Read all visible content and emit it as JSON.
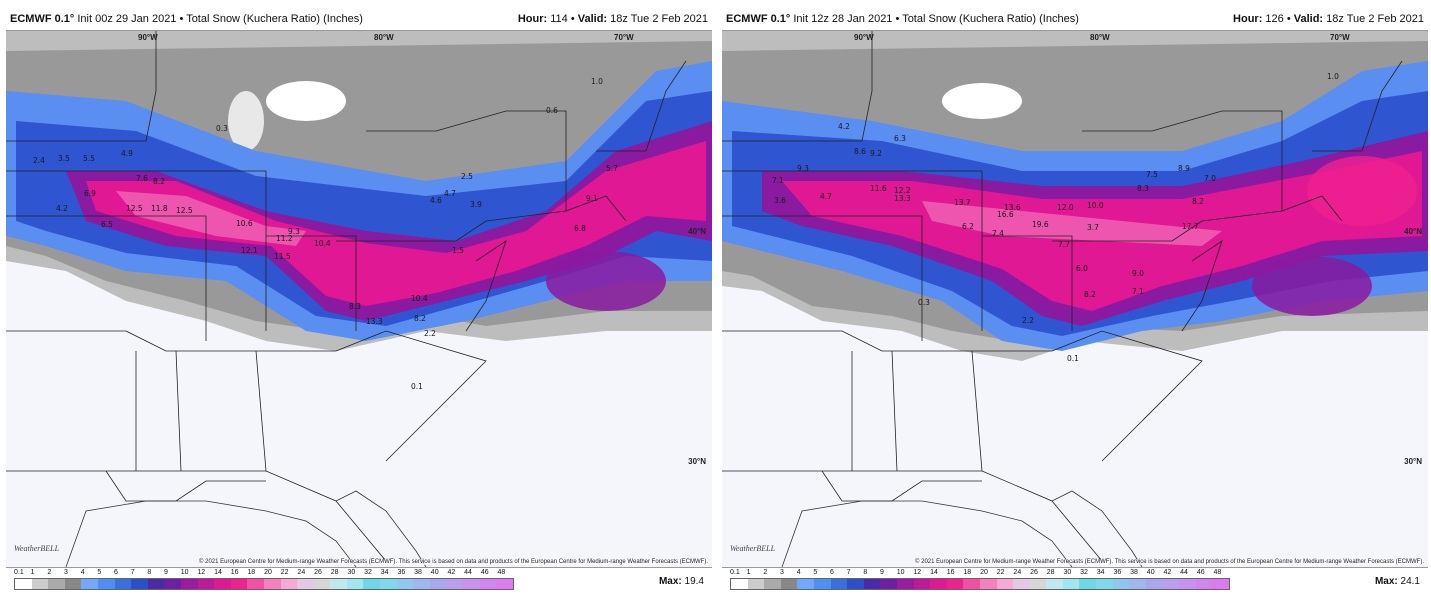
{
  "palette": {
    "scale": [
      "#ffffff",
      "#cccccc",
      "#aaaaaa",
      "#888888",
      "#6ea8ff",
      "#4f8ef4",
      "#3a6fe0",
      "#2a4fc8",
      "#4a2aa8",
      "#6f1fa6",
      "#9a1aa0",
      "#c0189a",
      "#e01893",
      "#f0208e",
      "#f54fa5",
      "#f77fbf",
      "#f7a8d6",
      "#e6c7e6",
      "#d6d6d6",
      "#bfe9ef",
      "#9fe6ee",
      "#6fd8e8",
      "#7fd8f0",
      "#8fc7f0",
      "#9fb6ef",
      "#a8a6ee",
      "#b99ef0",
      "#c891f0",
      "#d285f0",
      "#de7af0",
      "#e872ee"
    ]
  },
  "legend_ticks": [
    "0.1",
    "1",
    "2",
    "3",
    "4",
    "5",
    "6",
    "7",
    "8",
    "9",
    "10",
    "12",
    "14",
    "16",
    "18",
    "20",
    "22",
    "24",
    "26",
    "28",
    "30",
    "32",
    "34",
    "36",
    "38",
    "40",
    "42",
    "44",
    "46",
    "48"
  ],
  "watermark": "WeatherBELL",
  "copyright": "© 2021 European Centre for Medium-range Weather Forecasts (ECMWF). This service is based on data and products of the European Centre for Medium-range Weather Forecasts (ECMWF).",
  "panels": [
    {
      "header_left_model": "ECMWF 0.1°",
      "header_left_rest": " Init 00z 29 Jan 2021 • Total Snow (Kuchera Ratio) (Inches)",
      "header_right_hour_label": "Hour:",
      "header_right_hour": " 114 • ",
      "header_right_valid_label": "Valid:",
      "header_right_valid": " 18z Tue 2 Feb 2021",
      "max_label": "Max:",
      "max_value": " 19.4",
      "lat_labels": [
        "40°N",
        "30°N"
      ],
      "lon_labels": [
        "90°W",
        "80°W",
        "70°W"
      ],
      "values": [
        "12.5",
        "11.8",
        "12.5",
        "10.6",
        "12.1",
        "11.5",
        "10.4",
        "9.3",
        "11.2",
        "6.9",
        "7.6",
        "8.2",
        "6.5",
        "5.5",
        "4.9",
        "4.2",
        "3.5",
        "2.4",
        "10.4",
        "8.3",
        "8.2",
        "13.3",
        "9.1",
        "6.8",
        "5.7",
        "4.7",
        "4.6",
        "3.9",
        "2.5",
        "1.5",
        "0.1",
        "0.3",
        "0.6",
        "1.0",
        "2.2"
      ]
    },
    {
      "header_left_model": "ECMWF 0.1°",
      "header_left_rest": " Init 12z 28 Jan 2021 • Total Snow (Kuchera Ratio) (Inches)",
      "header_right_hour_label": "Hour:",
      "header_right_hour": " 126 • ",
      "header_right_valid_label": "Valid:",
      "header_right_valid": " 18z Tue 2 Feb 2021",
      "max_label": "Max:",
      "max_value": " 24.1",
      "lat_labels": [
        "40°N",
        "30°N"
      ],
      "lon_labels": [
        "90°W",
        "80°W",
        "70°W"
      ],
      "values": [
        "9.3",
        "11.6",
        "12.2",
        "13.3",
        "13.7",
        "16.6",
        "13.6",
        "19.6",
        "12.0",
        "10.0",
        "17.7",
        "8.2",
        "8.3",
        "8.9",
        "7.5",
        "7.0",
        "9.0",
        "7.1",
        "8.2",
        "6.0",
        "7.7",
        "3.7",
        "6.2",
        "7.4",
        "8.6",
        "9.2",
        "6.3",
        "4.2",
        "7.1",
        "4.7",
        "3.6",
        "0.1",
        "0.3",
        "1.0",
        "2.2"
      ]
    }
  ]
}
